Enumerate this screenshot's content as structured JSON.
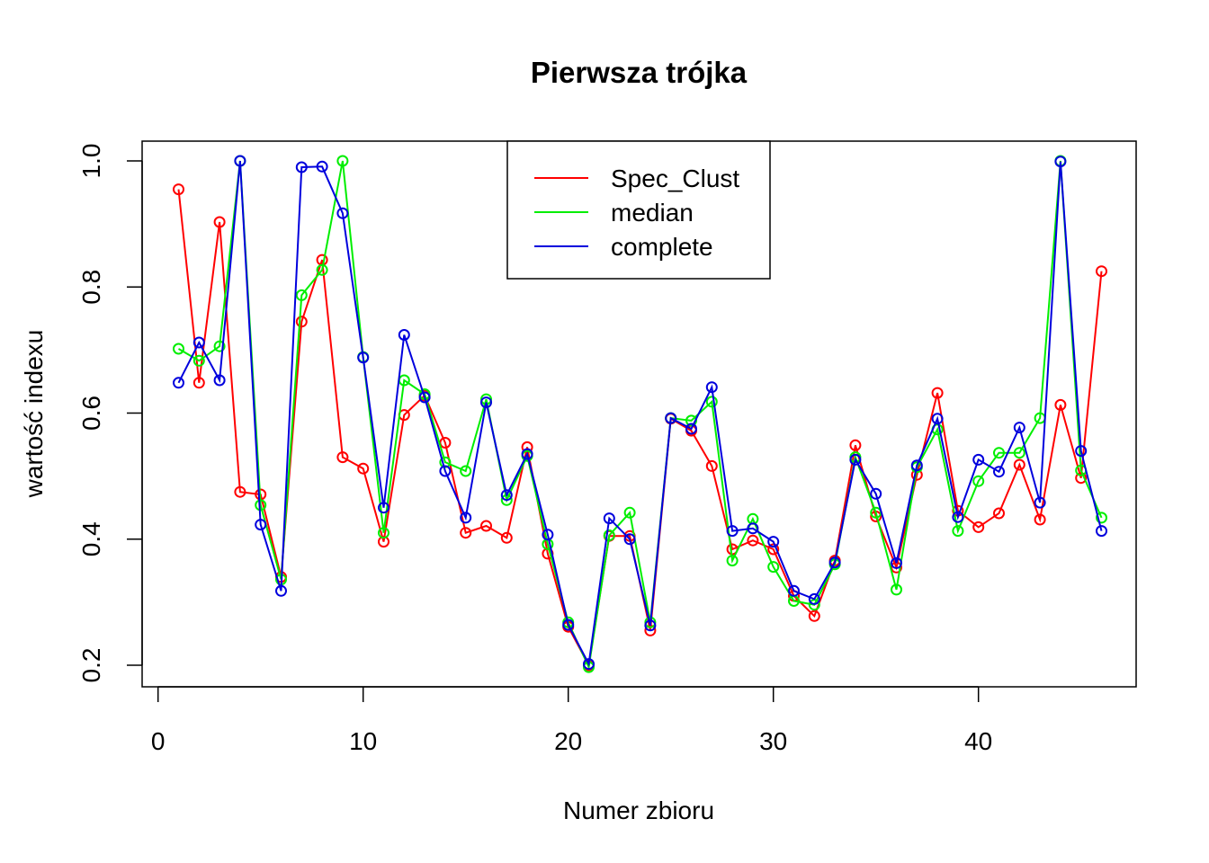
{
  "chart_data": {
    "type": "line",
    "title": "Pierwsza trójka",
    "xlabel": "Numer zbioru",
    "ylabel": "wartość indexu",
    "xlim": [
      0,
      46
    ],
    "ylim": [
      0.2,
      1.0
    ],
    "x_ticks": [
      "0",
      "10",
      "20",
      "30",
      "40"
    ],
    "y_ticks": [
      "0.2",
      "0.4",
      "0.6",
      "0.8",
      "1.0"
    ],
    "grid": false,
    "legend_position": "top-center",
    "x": [
      1,
      2,
      3,
      4,
      5,
      6,
      7,
      8,
      9,
      10,
      11,
      12,
      13,
      14,
      15,
      16,
      17,
      18,
      19,
      20,
      21,
      22,
      23,
      24,
      25,
      26,
      27,
      28,
      29,
      30,
      31,
      32,
      33,
      34,
      35,
      36,
      37,
      38,
      39,
      40,
      41,
      42,
      43,
      44,
      45,
      46
    ],
    "series": [
      {
        "name": "Spec_Clust",
        "color": "#ff0000",
        "values": [
          0.955,
          0.648,
          0.903,
          0.475,
          0.471,
          0.34,
          0.745,
          0.843,
          0.53,
          0.512,
          0.396,
          0.597,
          0.628,
          0.553,
          0.41,
          0.421,
          0.402,
          0.546,
          0.377,
          0.261,
          0.2,
          0.405,
          0.405,
          0.255,
          0.591,
          0.572,
          0.516,
          0.384,
          0.398,
          0.384,
          0.31,
          0.278,
          0.366,
          0.549,
          0.436,
          0.355,
          0.502,
          0.632,
          0.445,
          0.419,
          0.441,
          0.518,
          0.431,
          0.613,
          0.497,
          0.825
        ]
      },
      {
        "name": "median",
        "color": "#00ee00",
        "values": [
          0.702,
          0.683,
          0.706,
          1.0,
          0.454,
          0.336,
          0.787,
          0.827,
          1.0,
          0.689,
          0.41,
          0.652,
          0.63,
          0.522,
          0.508,
          0.622,
          0.462,
          0.532,
          0.392,
          0.268,
          0.197,
          0.406,
          0.442,
          0.268,
          0.592,
          0.588,
          0.618,
          0.366,
          0.432,
          0.356,
          0.302,
          0.296,
          0.36,
          0.53,
          0.442,
          0.32,
          0.514,
          0.574,
          0.413,
          0.492,
          0.537,
          0.537,
          0.592,
          1.0,
          0.509,
          0.434
        ]
      },
      {
        "name": "complete",
        "color": "#0000dd",
        "values": [
          0.648,
          0.712,
          0.652,
          1.0,
          0.423,
          0.318,
          0.99,
          0.991,
          0.917,
          0.688,
          0.45,
          0.724,
          0.625,
          0.508,
          0.434,
          0.617,
          0.47,
          0.535,
          0.407,
          0.264,
          0.202,
          0.433,
          0.4,
          0.263,
          0.592,
          0.575,
          0.641,
          0.413,
          0.417,
          0.396,
          0.318,
          0.305,
          0.363,
          0.526,
          0.472,
          0.362,
          0.517,
          0.591,
          0.435,
          0.526,
          0.507,
          0.577,
          0.458,
          0.999,
          0.54,
          0.413
        ]
      }
    ]
  }
}
